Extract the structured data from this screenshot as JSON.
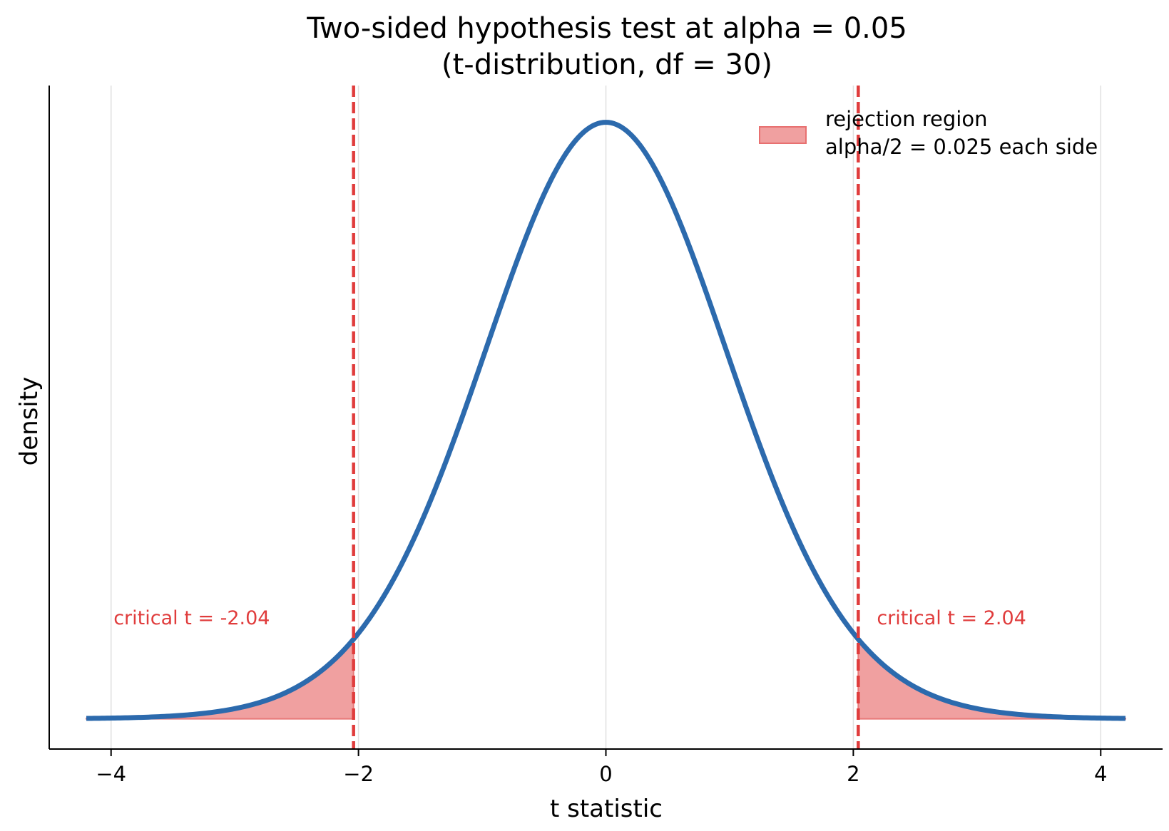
{
  "chart_data": {
    "type": "line",
    "title": "Two-sided hypothesis test at alpha = 0.05",
    "subtitle": "(t-distribution, df = 30)",
    "xlabel": "t statistic",
    "ylabel": "density",
    "xlim": [
      -4.5,
      4.5
    ],
    "ylim": [
      -0.02,
      0.42
    ],
    "x_ticks": [
      -4,
      -2,
      0,
      2,
      4
    ],
    "x_tick_labels": [
      "−4",
      "−2",
      "0",
      "2",
      "4"
    ],
    "y_ticks_shown": false,
    "grid": "vertical",
    "distribution": {
      "name": "t",
      "df": 30
    },
    "curve_x_range": [
      -4.2,
      4.2
    ],
    "alpha": 0.05,
    "critical_values": [
      -2.04,
      2.04
    ],
    "critical_labels": [
      "critical t = -2.04",
      "critical t = 2.04"
    ],
    "series": [
      {
        "values": [
          [
            -4.2,
            0.0003
          ],
          [
            -3.5,
            0.0015
          ],
          [
            -3.0,
            0.0058
          ],
          [
            -2.5,
            0.0199
          ],
          [
            -2.04,
            0.0514
          ],
          [
            -1.5,
            0.1283
          ],
          [
            -1.0,
            0.236
          ],
          [
            -0.5,
            0.3481
          ],
          [
            0,
            0.3956
          ],
          [
            0.5,
            0.3481
          ],
          [
            1.0,
            0.236
          ],
          [
            1.5,
            0.1283
          ],
          [
            2.04,
            0.0514
          ],
          [
            2.5,
            0.0199
          ],
          [
            3.0,
            0.0058
          ],
          [
            3.5,
            0.0015
          ],
          [
            4.2,
            0.0003
          ]
        ]
      }
    ],
    "shaded_regions": [
      [
        -4.2,
        -2.04
      ],
      [
        2.04,
        4.2
      ]
    ],
    "legend": {
      "position": "top-right",
      "entries": [
        "rejection region\nalpha/2 = 0.025 each side"
      ]
    },
    "colors": {
      "curve": "#2c6aad",
      "region": "#f0a0a0",
      "critical": "#e03c3c",
      "grid": "#e0e0e0"
    }
  }
}
